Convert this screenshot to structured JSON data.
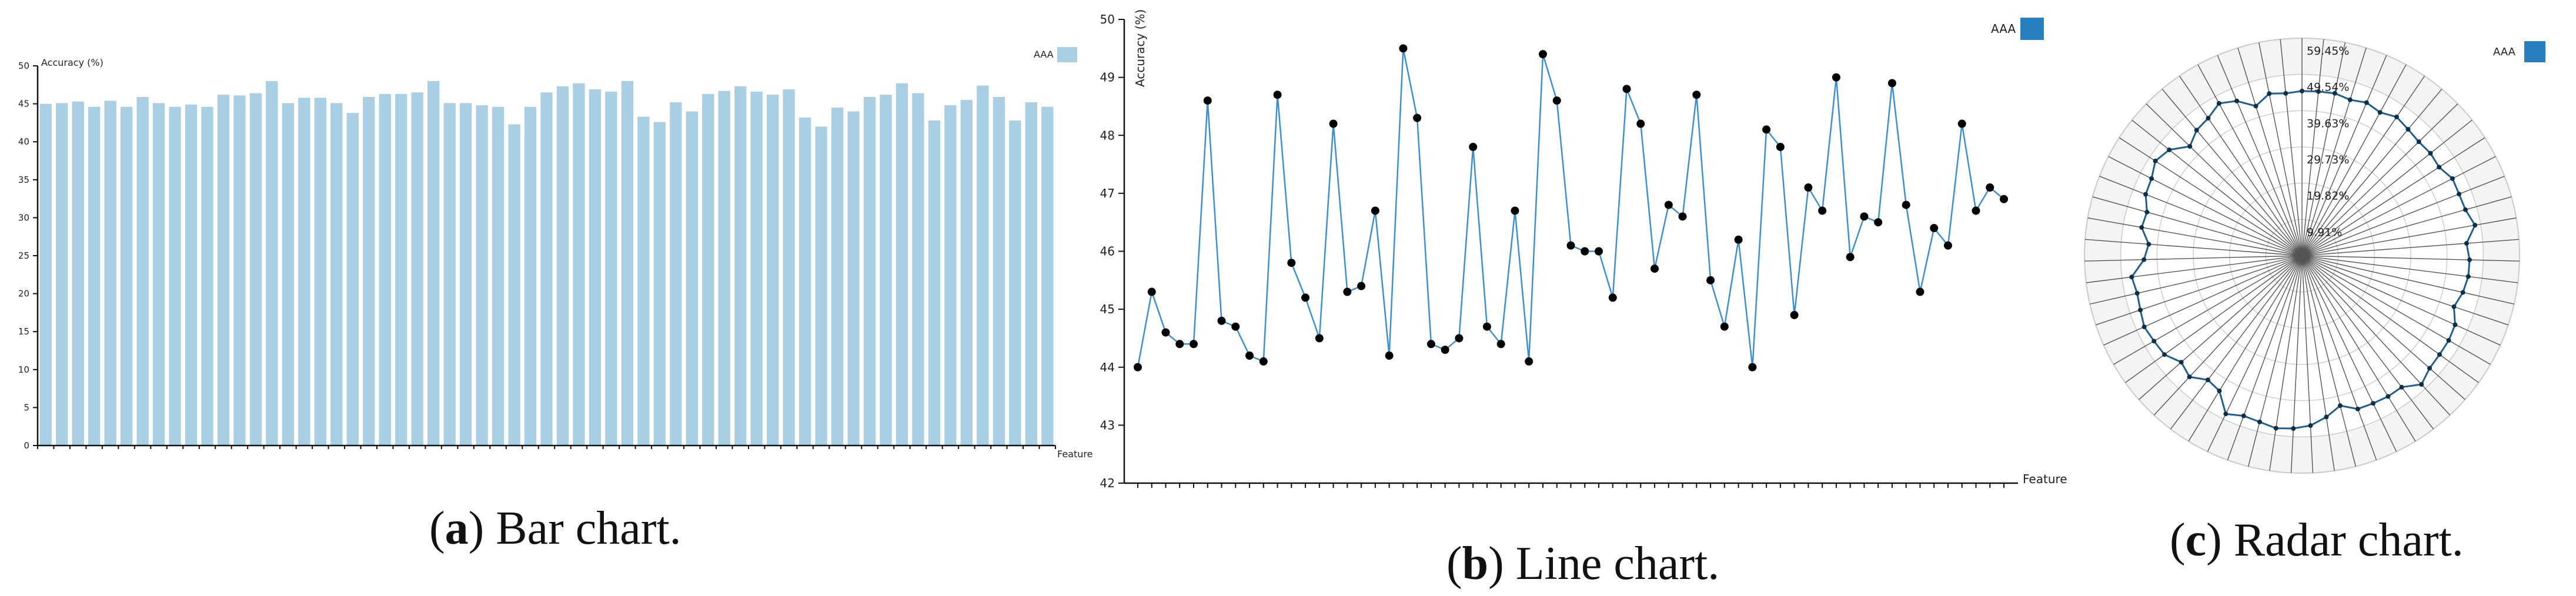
{
  "chart_data": [
    {
      "type": "bar",
      "title": "",
      "ylabel": "Accuracy (%)",
      "xlabel": "Feature",
      "ylim": [
        0,
        50
      ],
      "yticks": [
        0,
        5,
        10,
        15,
        20,
        25,
        30,
        35,
        40,
        45,
        50
      ],
      "legend": {
        "label": "AAA",
        "color": "#a8cfe3",
        "position": "top-right"
      },
      "series": [
        {
          "name": "AAA",
          "color": "#a8cfe3",
          "values": [
            45.0,
            45.1,
            45.3,
            44.6,
            45.4,
            44.6,
            45.9,
            45.1,
            44.6,
            44.9,
            44.6,
            46.2,
            46.1,
            46.4,
            48.0,
            45.1,
            45.8,
            45.8,
            45.1,
            43.8,
            45.9,
            46.3,
            46.3,
            46.5,
            48.0,
            45.1,
            45.1,
            44.8,
            44.6,
            42.3,
            44.6,
            46.5,
            47.3,
            47.7,
            46.9,
            46.6,
            48.0,
            43.3,
            42.6,
            45.2,
            44.0,
            46.3,
            46.7,
            47.3,
            46.6,
            46.2,
            46.9,
            43.2,
            42.0,
            44.5,
            44.0,
            45.9,
            46.2,
            47.7,
            46.4,
            42.8,
            44.8,
            45.5,
            47.4,
            45.9,
            42.8,
            45.2,
            44.6
          ]
        }
      ],
      "caption": {
        "letter": "a",
        "text": ") Bar chart.",
        "open": "("
      }
    },
    {
      "type": "line",
      "ylabel": "Accuracy (%)",
      "xlabel": "Feature",
      "ylim": [
        42,
        50
      ],
      "yticks": [
        42,
        43,
        44,
        45,
        46,
        47,
        48,
        49,
        50
      ],
      "legend": {
        "label": "AAA",
        "color": "#2a7fbf",
        "position": "top-right"
      },
      "series": [
        {
          "name": "AAA",
          "color": "#3d8fd0",
          "values": [
            44.0,
            45.3,
            44.6,
            44.4,
            44.4,
            48.6,
            44.8,
            44.7,
            44.2,
            44.1,
            48.7,
            45.8,
            45.2,
            44.5,
            48.2,
            45.3,
            45.4,
            46.7,
            44.2,
            49.5,
            48.3,
            44.4,
            44.3,
            44.5,
            47.8,
            44.7,
            44.4,
            46.7,
            44.1,
            49.4,
            48.6,
            46.1,
            46.0,
            46.0,
            45.2,
            48.8,
            48.2,
            45.7,
            46.8,
            46.6,
            48.7,
            45.5,
            44.7,
            46.2,
            44.0,
            48.1,
            47.8,
            44.9,
            47.1,
            46.7,
            49.0,
            45.9,
            46.6,
            46.5,
            48.9,
            46.8,
            45.3,
            46.4,
            46.1,
            48.2,
            46.7,
            47.1,
            46.9
          ]
        }
      ],
      "caption": {
        "letter": "b",
        "text": ") Line chart.",
        "open": "("
      }
    },
    {
      "type": "radar",
      "rticks": [
        "59.45%",
        "49.54%",
        "39.63%",
        "29.73%",
        "19.82%",
        "9.91%"
      ],
      "rmax": 59.45,
      "legend": {
        "label": "AAA",
        "color": "#2a7fbf",
        "position": "top-right"
      },
      "series": [
        {
          "name": "AAA",
          "color": "#1f5e8e",
          "values": [
            45.0,
            45.1,
            45.3,
            44.6,
            45.4,
            44.6,
            45.9,
            45.1,
            44.6,
            44.9,
            44.6,
            46.2,
            46.1,
            46.4,
            48.0,
            45.1,
            45.8,
            45.8,
            45.1,
            43.8,
            45.9,
            46.3,
            46.3,
            46.5,
            48.0,
            45.1,
            45.1,
            44.8,
            44.6,
            42.3,
            44.6,
            46.5,
            47.3,
            47.7,
            46.9,
            46.6,
            48.0,
            43.3,
            42.6,
            45.2,
            44.0,
            46.3,
            46.7,
            47.3,
            46.6,
            46.2,
            46.9,
            43.2,
            42.0,
            44.5,
            44.0,
            45.9,
            46.2,
            47.7,
            46.4,
            42.8,
            44.8,
            45.5,
            47.4,
            45.9,
            42.8,
            45.2,
            44.6
          ]
        }
      ],
      "caption": {
        "letter": "c",
        "text": ") Radar chart.",
        "open": "("
      }
    }
  ]
}
